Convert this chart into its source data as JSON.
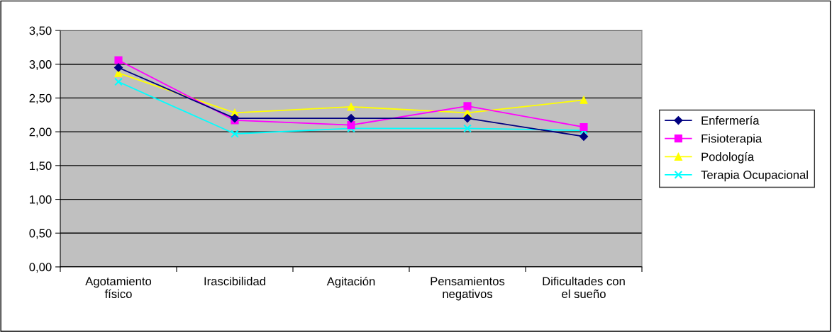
{
  "chart_data": {
    "type": "line",
    "categories": [
      "Agotamiento\nfísico",
      "Irascibilidad",
      "Agitación",
      "Pensamientos\nnegativos",
      "Dificultades con\nel sueño"
    ],
    "series": [
      {
        "name": "Enfermería",
        "color": "#000080",
        "marker": "diamond",
        "values": [
          2.95,
          2.2,
          2.2,
          2.2,
          1.93
        ]
      },
      {
        "name": "Fisioterapia",
        "color": "#ff00ff",
        "marker": "square",
        "values": [
          3.06,
          2.17,
          2.1,
          2.38,
          2.07
        ]
      },
      {
        "name": "Podología",
        "color": "#ffff00",
        "marker": "triangle",
        "values": [
          2.87,
          2.28,
          2.37,
          2.28,
          2.47
        ]
      },
      {
        "name": "Terapia Ocupacional",
        "color": "#00ffff",
        "marker": "cross",
        "values": [
          2.74,
          1.97,
          2.05,
          2.05,
          2.02
        ]
      }
    ],
    "ylim": [
      0,
      3.5
    ],
    "yticks": [
      {
        "value": 0,
        "label": "0,00"
      },
      {
        "value": 0.5,
        "label": "0,50"
      },
      {
        "value": 1,
        "label": "1,00"
      },
      {
        "value": 1.5,
        "label": "1,50"
      },
      {
        "value": 2,
        "label": "2,00"
      },
      {
        "value": 2.5,
        "label": "2,50"
      },
      {
        "value": 3,
        "label": "3,00"
      },
      {
        "value": 3.5,
        "label": "3,50"
      }
    ],
    "grid": "y",
    "legend": "right",
    "line_style": "solid"
  }
}
